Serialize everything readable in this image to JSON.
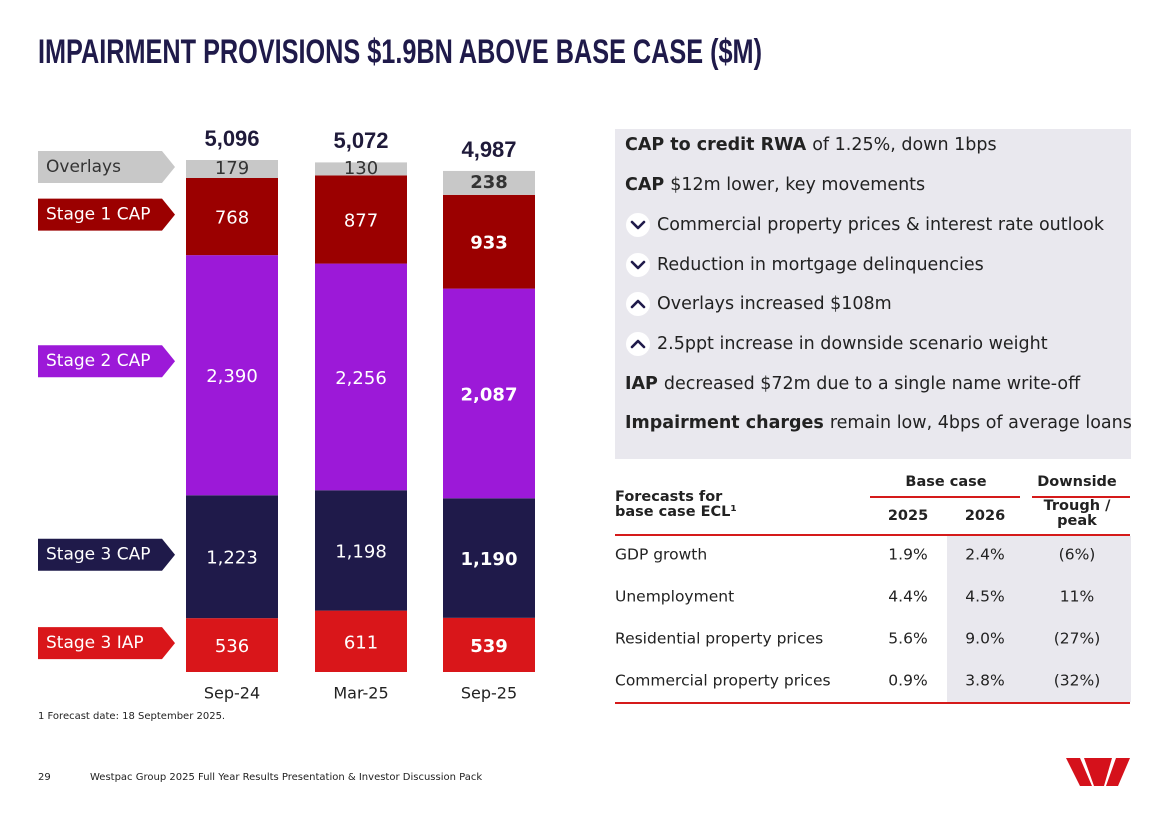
{
  "title": "IMPAIRMENT PROVISIONS $1.9BN ABOVE BASE CASE ($M)",
  "chart_data": {
    "type": "stacked_bar",
    "categories": [
      "Sep-24",
      "Mar-25",
      "Sep-25"
    ],
    "series": [
      {
        "name": "Stage 3 IAP",
        "color": "#d9161a",
        "values": [
          536,
          611,
          539
        ],
        "value_labels": [
          "536",
          "611",
          "539"
        ]
      },
      {
        "name": "Stage 3 CAP",
        "color": "#1f1a4a",
        "values": [
          1223,
          1198,
          1190
        ],
        "value_labels": [
          "1,223",
          "1,198",
          "1,190"
        ]
      },
      {
        "name": "Stage 2 CAP",
        "color": "#9c19d8",
        "values": [
          2390,
          2256,
          2087
        ],
        "value_labels": [
          "2,390",
          "2,256",
          "2,087"
        ]
      },
      {
        "name": "Stage 1 CAP",
        "color": "#9b0000",
        "values": [
          768,
          877,
          933
        ],
        "value_labels": [
          "768",
          "877",
          "933"
        ]
      },
      {
        "name": "Overlays",
        "color": "#c8c8c8",
        "values": [
          179,
          130,
          238
        ],
        "value_labels": [
          "179",
          "130",
          "238"
        ]
      }
    ],
    "totals": [
      5096,
      5072,
      4987
    ],
    "total_labels": [
      "5,096",
      "5,072",
      "4,987"
    ]
  },
  "panel": [
    {
      "bold": "CAP to credit RWA",
      "text": "of 1.25%, down 1bps"
    },
    {
      "bold": "CAP",
      "text": "$12m lower, key movements"
    },
    {
      "icon": "down",
      "text": "Commercial property prices & interest rate outlook"
    },
    {
      "icon": "down",
      "text": "Reduction in mortgage delinquencies"
    },
    {
      "icon": "up",
      "text": "Overlays increased $108m"
    },
    {
      "icon": "up",
      "text": "2.5ppt increase in downside scenario weight"
    },
    {
      "bold": "IAP",
      "text": "decreased $72m due to a single name write-off"
    },
    {
      "bold": "Impairment charges",
      "text": "remain low, 4bps of average loans"
    }
  ],
  "table": {
    "caption": "Forecasts for base case ECL¹",
    "groups": [
      "Base case",
      "Downside"
    ],
    "columns": [
      "2025",
      "2026",
      "Trough / peak"
    ],
    "rows": [
      [
        "GDP growth",
        "1.9%",
        "2.4%",
        "(6%)"
      ],
      [
        "Unemployment",
        "4.4%",
        "4.5%",
        "11%"
      ],
      [
        "Residential property prices",
        "5.6%",
        "9.0%",
        "(27%)"
      ],
      [
        "Commercial property prices",
        "0.9%",
        "3.8%",
        "(32%)"
      ]
    ]
  },
  "footnote": "1 Forecast date: 18 September 2025.",
  "footer": {
    "page": "29",
    "text": "Westpac Group 2025 Full Year Results Presentation & Investor Discussion Pack"
  }
}
